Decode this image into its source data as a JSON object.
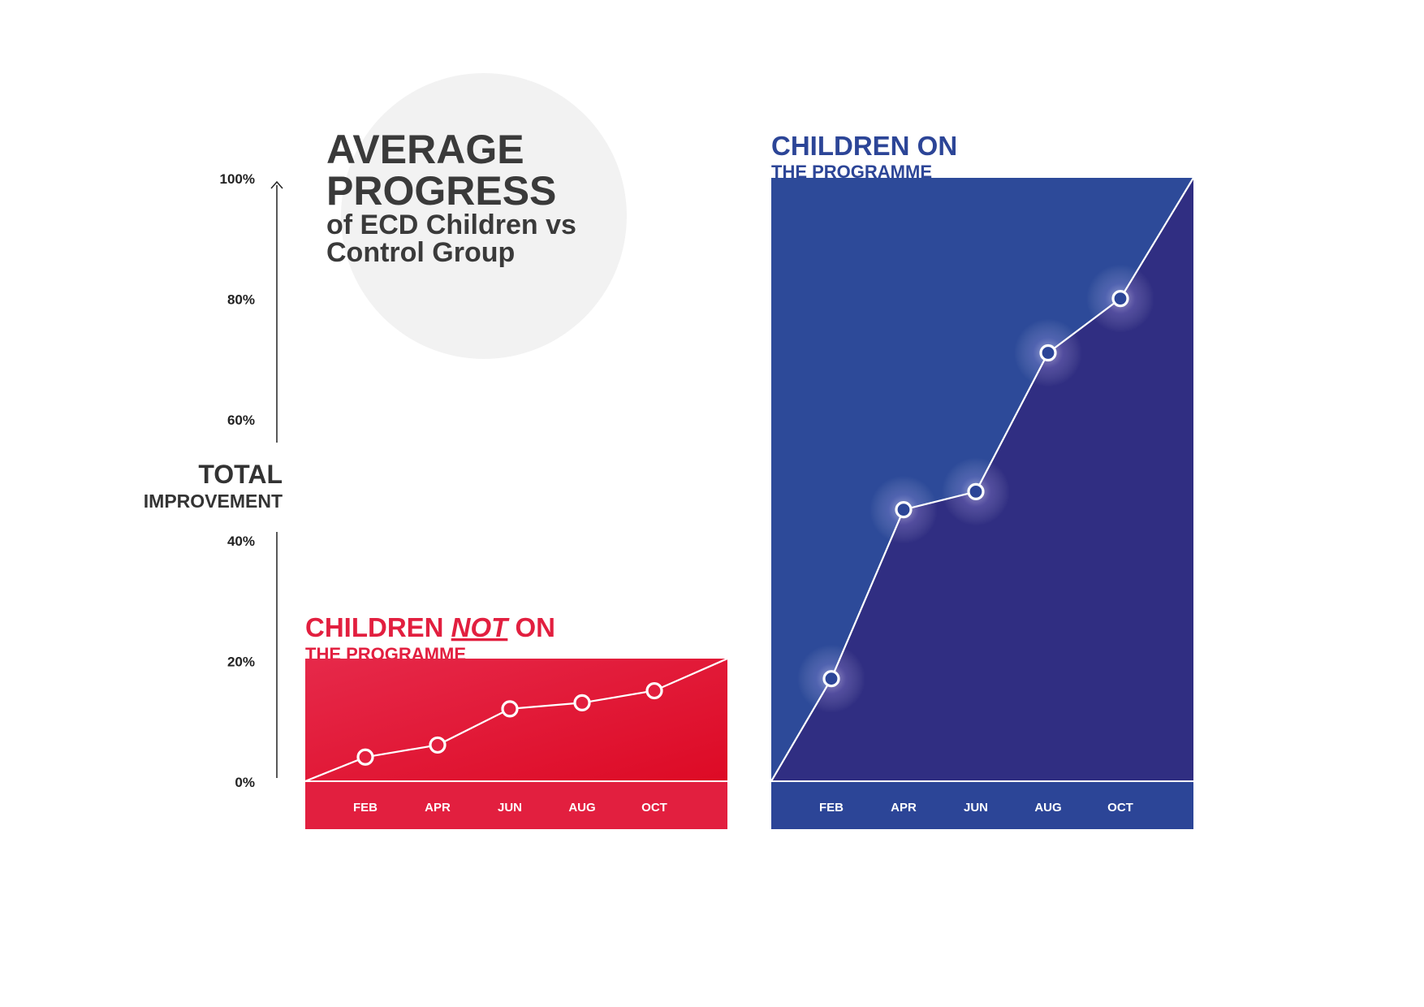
{
  "title": {
    "line1": "AVERAGE",
    "line2": "PROGRESS",
    "line3": "of ECD Children vs",
    "line4": "Control Group"
  },
  "y_axis": {
    "label_line1": "TOTAL",
    "label_line2": "IMPROVEMENT",
    "ticks": [
      "0%",
      "20%",
      "40%",
      "60%",
      "80%",
      "100%"
    ]
  },
  "control_panel": {
    "title_part1": "CHILDREN ",
    "title_emphasis": "NOT",
    "title_part2": " ON",
    "subtitle": "THE PROGRAMME"
  },
  "programme_panel": {
    "title": "CHILDREN ON",
    "subtitle": "THE PROGRAMME"
  },
  "colors": {
    "control_light": "#e6294a",
    "control_dark": "#dd0a25",
    "control_strip": "#e21f3f",
    "programme_light": "#2d4a99",
    "programme_dark": "#302e82",
    "programme_strip": "#2c4597",
    "circle_bg": "#f2f2f2",
    "title_text": "#3a3a3a"
  },
  "chart_data": [
    {
      "type": "line",
      "months": [
        "FEB",
        "APR",
        "JUN",
        "AUG",
        "OCT"
      ],
      "x": [
        "FEB",
        "APR",
        "JUN",
        "AUG",
        "OCT"
      ],
      "values": [
        4,
        6,
        12,
        13,
        15
      ],
      "ylim": [
        0,
        100
      ]
    },
    {
      "type": "line",
      "months": [
        "FEB",
        "APR",
        "JUN",
        "AUG",
        "OCT"
      ],
      "x": [
        "FEB",
        "APR",
        "JUN",
        "AUG",
        "OCT"
      ],
      "values": [
        17,
        45,
        48,
        71,
        80
      ],
      "ylim": [
        0,
        100
      ]
    }
  ]
}
